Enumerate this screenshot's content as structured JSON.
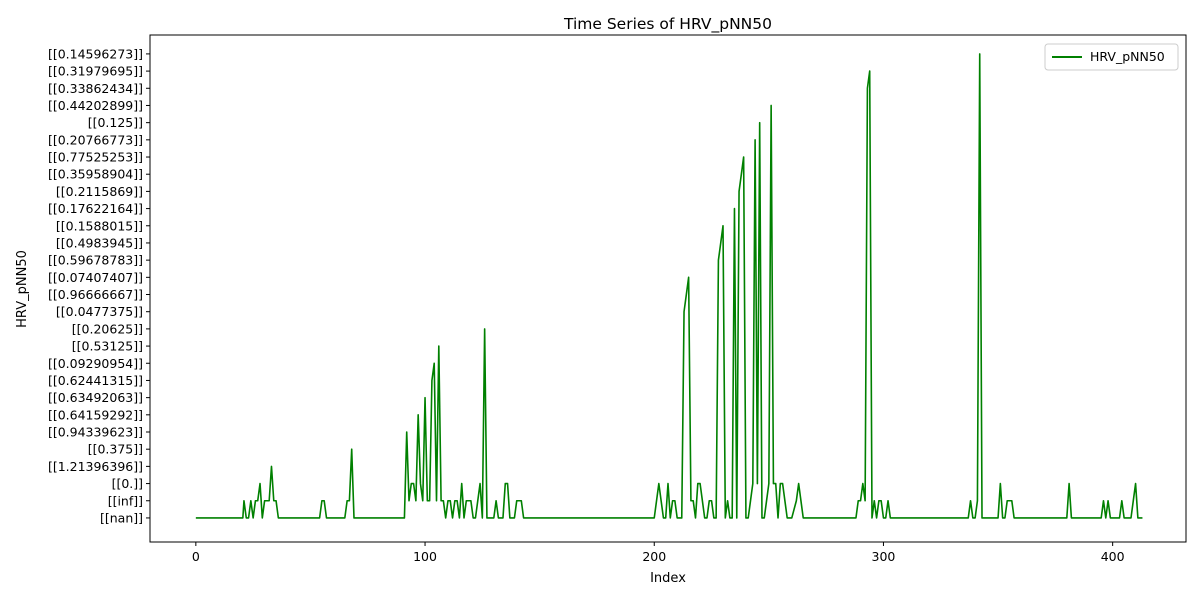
{
  "chart_data": {
    "type": "line",
    "title": "Time Series of HRV_pNN50",
    "xlabel": "Index",
    "ylabel": "HRV_pNN50",
    "xlim": [
      -20,
      432
    ],
    "xticks": [
      0,
      100,
      200,
      300,
      400
    ],
    "xtick_labels": [
      "0",
      "100",
      "200",
      "300",
      "400"
    ],
    "y_categories": [
      "[[nan]]",
      "[[inf]]",
      "[[0.]]",
      "[[1.21396396]]",
      "[[0.375]]",
      "[[0.94339623]]",
      "[[0.64159292]]",
      "[[0.63492063]]",
      "[[0.62441315]]",
      "[[0.09290954]]",
      "[[0.53125]]",
      "[[0.20625]]",
      "[[0.0477375]]",
      "[[0.96666667]]",
      "[[0.07407407]]",
      "[[0.59678783]]",
      "[[0.4983945]]",
      "[[0.1588015]]",
      "[[0.17622164]]",
      "[[0.2115869]]",
      "[[0.35958904]]",
      "[[0.77525253]]",
      "[[0.20766773]]",
      "[[0.125]]",
      "[[0.44202899]]",
      "[[0.33862434]]",
      "[[0.31979695]]",
      "[[0.14596273]]"
    ],
    "ylim": [
      -1.4,
      28.1
    ],
    "grid": false,
    "legend_position": "top-right",
    "series": [
      {
        "name": "HRV_pNN50",
        "color": "#008000",
        "points": [
          [
            0,
            0
          ],
          [
            20,
            0
          ],
          [
            20.5,
            0
          ],
          [
            21,
            1
          ],
          [
            22,
            0
          ],
          [
            23,
            0
          ],
          [
            24,
            1
          ],
          [
            25,
            0
          ],
          [
            26,
            1
          ],
          [
            27,
            1
          ],
          [
            28,
            2
          ],
          [
            29,
            0
          ],
          [
            30,
            1
          ],
          [
            31,
            1
          ],
          [
            32,
            1
          ],
          [
            33,
            3
          ],
          [
            34,
            1
          ],
          [
            35,
            1
          ],
          [
            36,
            0
          ],
          [
            54,
            0
          ],
          [
            55,
            1
          ],
          [
            56,
            1
          ],
          [
            57,
            0
          ],
          [
            65,
            0
          ],
          [
            66,
            1
          ],
          [
            67,
            1
          ],
          [
            68,
            4
          ],
          [
            69,
            0
          ],
          [
            90,
            0
          ],
          [
            91,
            0
          ],
          [
            92,
            5
          ],
          [
            93,
            1
          ],
          [
            94,
            2
          ],
          [
            95,
            2
          ],
          [
            96,
            1
          ],
          [
            97,
            6
          ],
          [
            98,
            2
          ],
          [
            99,
            1
          ],
          [
            100,
            7
          ],
          [
            101,
            1
          ],
          [
            102,
            1
          ],
          [
            103,
            8
          ],
          [
            104,
            9
          ],
          [
            105,
            1
          ],
          [
            106,
            10
          ],
          [
            107,
            1
          ],
          [
            108,
            1
          ],
          [
            109,
            0
          ],
          [
            110,
            1
          ],
          [
            111,
            1
          ],
          [
            112,
            0
          ],
          [
            113,
            1
          ],
          [
            114,
            1
          ],
          [
            115,
            0
          ],
          [
            116,
            2
          ],
          [
            117,
            0
          ],
          [
            118,
            1
          ],
          [
            119,
            1
          ],
          [
            120,
            1
          ],
          [
            121,
            0
          ],
          [
            122,
            0
          ],
          [
            123,
            1
          ],
          [
            124,
            2
          ],
          [
            125,
            0
          ],
          [
            126,
            11
          ],
          [
            127,
            0
          ],
          [
            128,
            0
          ],
          [
            129,
            0
          ],
          [
            130,
            0
          ],
          [
            131,
            1
          ],
          [
            132,
            0
          ],
          [
            133,
            0
          ],
          [
            134,
            0
          ],
          [
            135,
            2
          ],
          [
            136,
            2
          ],
          [
            137,
            0
          ],
          [
            138,
            0
          ],
          [
            139,
            0
          ],
          [
            140,
            1
          ],
          [
            141,
            1
          ],
          [
            142,
            1
          ],
          [
            143,
            0
          ],
          [
            200,
            0
          ],
          [
            201,
            1
          ],
          [
            202,
            2
          ],
          [
            203,
            1
          ],
          [
            204,
            0
          ],
          [
            205,
            0
          ],
          [
            206,
            2
          ],
          [
            207,
            0
          ],
          [
            208,
            1
          ],
          [
            209,
            1
          ],
          [
            210,
            0
          ],
          [
            211,
            0
          ],
          [
            212,
            0
          ],
          [
            213,
            12
          ],
          [
            214,
            13
          ],
          [
            215,
            14
          ],
          [
            216,
            1
          ],
          [
            217,
            1
          ],
          [
            218,
            0
          ],
          [
            219,
            2
          ],
          [
            220,
            2
          ],
          [
            221,
            1
          ],
          [
            222,
            0
          ],
          [
            223,
            0
          ],
          [
            224,
            1
          ],
          [
            225,
            1
          ],
          [
            226,
            0
          ],
          [
            227,
            0
          ],
          [
            228,
            15
          ],
          [
            229,
            16
          ],
          [
            230,
            17
          ],
          [
            231,
            0
          ],
          [
            232,
            1
          ],
          [
            233,
            0
          ],
          [
            234,
            0
          ],
          [
            235,
            18
          ],
          [
            236,
            0
          ],
          [
            237,
            19
          ],
          [
            238,
            20
          ],
          [
            239,
            21
          ],
          [
            240,
            0
          ],
          [
            241,
            0
          ],
          [
            242,
            1
          ],
          [
            243,
            2
          ],
          [
            244,
            22
          ],
          [
            245,
            2
          ],
          [
            246,
            23
          ],
          [
            247,
            0
          ],
          [
            248,
            0
          ],
          [
            249,
            1
          ],
          [
            250,
            2
          ],
          [
            251,
            24
          ],
          [
            252,
            2
          ],
          [
            253,
            2
          ],
          [
            254,
            0
          ],
          [
            255,
            2
          ],
          [
            256,
            2
          ],
          [
            257,
            1
          ],
          [
            258,
            0
          ],
          [
            259,
            0
          ],
          [
            260,
            0
          ],
          [
            262,
            1
          ],
          [
            263,
            2
          ],
          [
            264,
            1
          ],
          [
            265,
            0
          ],
          [
            270,
            0
          ],
          [
            288,
            0
          ],
          [
            289,
            1
          ],
          [
            290,
            1
          ],
          [
            291,
            2
          ],
          [
            292,
            1
          ],
          [
            293,
            25
          ],
          [
            294,
            26
          ],
          [
            295,
            0
          ],
          [
            296,
            1
          ],
          [
            297,
            0
          ],
          [
            298,
            1
          ],
          [
            299,
            1
          ],
          [
            300,
            0
          ],
          [
            301,
            0
          ],
          [
            302,
            1
          ],
          [
            303,
            0
          ],
          [
            336,
            0
          ],
          [
            337,
            0
          ],
          [
            338,
            1
          ],
          [
            339,
            0
          ],
          [
            340,
            0
          ],
          [
            341,
            1
          ],
          [
            342,
            27
          ],
          [
            343,
            0
          ],
          [
            350,
            0
          ],
          [
            351,
            2
          ],
          [
            352,
            0
          ],
          [
            353,
            0
          ],
          [
            354,
            1
          ],
          [
            355,
            1
          ],
          [
            356,
            1
          ],
          [
            357,
            0
          ],
          [
            380,
            0
          ],
          [
            381,
            2
          ],
          [
            382,
            0
          ],
          [
            395,
            0
          ],
          [
            396,
            1
          ],
          [
            397,
            0
          ],
          [
            398,
            1
          ],
          [
            399,
            0
          ],
          [
            403,
            0
          ],
          [
            404,
            1
          ],
          [
            405,
            0
          ],
          [
            408,
            0
          ],
          [
            409,
            1
          ],
          [
            410,
            2
          ],
          [
            411,
            0
          ],
          [
            413,
            0
          ]
        ]
      }
    ]
  }
}
